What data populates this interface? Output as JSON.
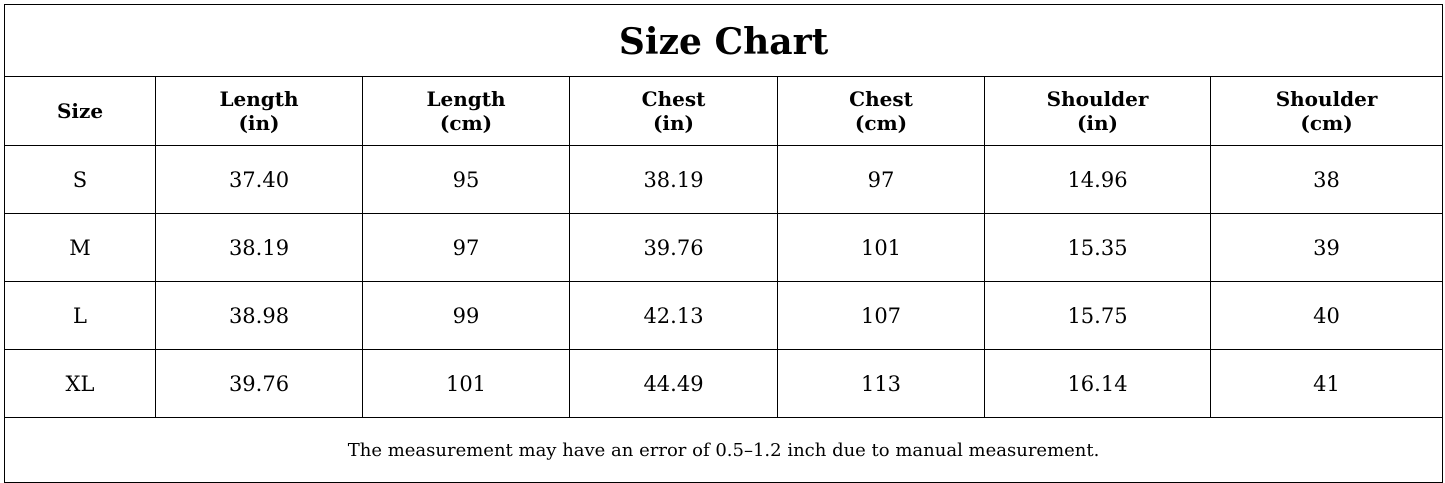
{
  "table": {
    "title": "Size Chart",
    "columns": [
      [
        "Size"
      ],
      [
        "Length",
        "(in)"
      ],
      [
        "Length",
        "(cm)"
      ],
      [
        "Chest",
        "(in)"
      ],
      [
        "Chest",
        "(cm)"
      ],
      [
        "Shoulder",
        "(in)"
      ],
      [
        "Shoulder",
        "(cm)"
      ]
    ],
    "rows": [
      [
        "S",
        "37.40",
        "95",
        "38.19",
        "97",
        "14.96",
        "38"
      ],
      [
        "M",
        "38.19",
        "97",
        "39.76",
        "101",
        "15.35",
        "39"
      ],
      [
        "L",
        "38.98",
        "99",
        "42.13",
        "107",
        "15.75",
        "40"
      ],
      [
        "XL",
        "39.76",
        "101",
        "44.49",
        "113",
        "16.14",
        "41"
      ]
    ],
    "note": "The measurement may have an error of 0.5–1.2 inch due to manual measurement."
  }
}
